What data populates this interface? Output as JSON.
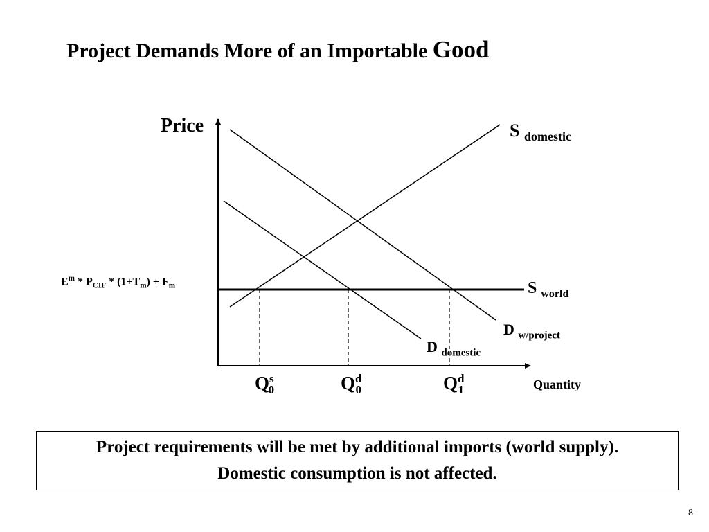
{
  "title": {
    "main": "Project Demands More of an Importable",
    "last_word": "Good"
  },
  "diagram": {
    "y_axis_label": "Price",
    "x_axis_label": "Quantity",
    "curves": {
      "s_domestic": {
        "base": "S",
        "sub": "domestic"
      },
      "s_world": {
        "base": "S",
        "sub": "world"
      },
      "d_domestic": {
        "base": "D",
        "sub": "domestic"
      },
      "d_project": {
        "base": "D",
        "sub": "w/project"
      }
    },
    "price_level": {
      "e": "E",
      "e_sup": "m",
      "mid1": " * P",
      "cif": "CIF",
      "mid2": " * (1+T",
      "t_sub": "m",
      "mid3": ") + F",
      "f_sub": "m"
    },
    "quantities": [
      {
        "base": "Q",
        "sup": "s",
        "sub": "0"
      },
      {
        "base": "Q",
        "sup": "d",
        "sub": "0"
      },
      {
        "base": "Q",
        "sup": "d",
        "sub": "1"
      }
    ]
  },
  "caption": "Project requirements will be met by additional imports (world supply).  Domestic consumption is not affected.",
  "page_number": "8"
}
